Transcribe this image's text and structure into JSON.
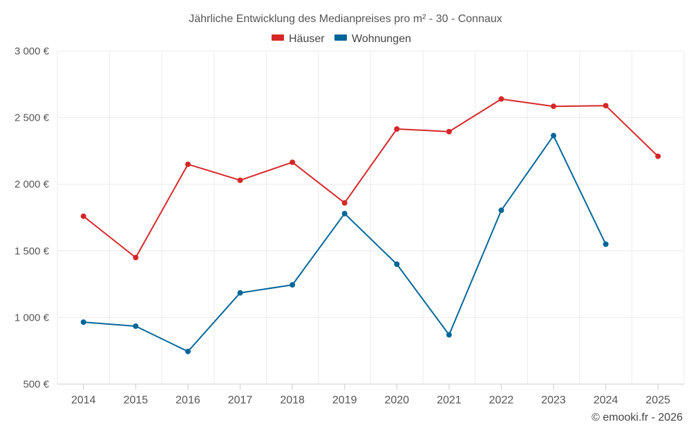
{
  "chart_data": {
    "type": "line",
    "title": "Jährliche Entwicklung des Medianpreises pro m² - 30 - Connaux",
    "categories": [
      "2014",
      "2015",
      "2016",
      "2017",
      "2018",
      "2019",
      "2020",
      "2021",
      "2022",
      "2023",
      "2024",
      "2025"
    ],
    "y_ticks": [
      500,
      1000,
      1500,
      2000,
      2500,
      3000
    ],
    "y_tick_labels": [
      "500 €",
      "1 000 €",
      "1 500 €",
      "2 000 €",
      "2 500 €",
      "3 000 €"
    ],
    "ylim": [
      500,
      3000
    ],
    "grid": true,
    "legend_position": "top-center",
    "series": [
      {
        "name": "Häuser",
        "color": "#d62728",
        "values": [
          1760,
          1450,
          2150,
          2030,
          2165,
          1860,
          2415,
          2395,
          2640,
          2585,
          2590,
          2210
        ]
      },
      {
        "name": "Wohnungen",
        "color": "#006699",
        "values": [
          965,
          935,
          745,
          1185,
          1245,
          1780,
          1400,
          870,
          1805,
          2365,
          1550,
          null
        ]
      }
    ],
    "credit": "© emooki.fr - 2026"
  }
}
